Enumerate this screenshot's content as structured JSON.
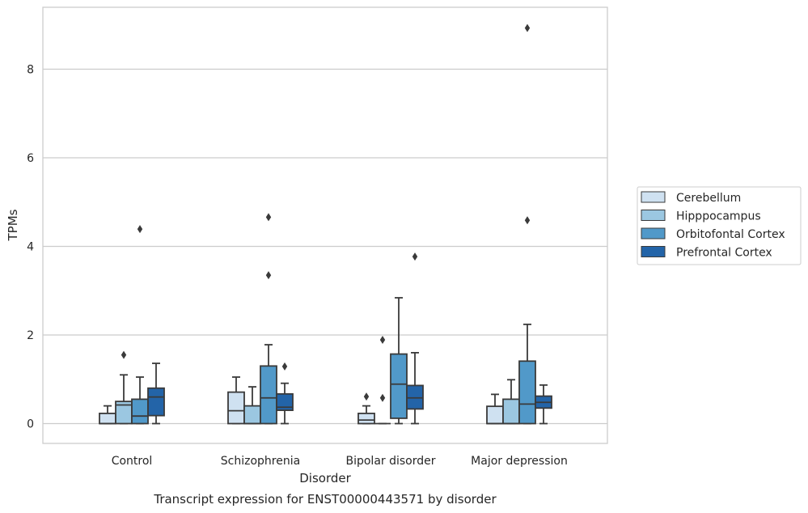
{
  "chart_data": {
    "type": "box",
    "caption": "Transcript expression for ENST00000443571 by disorder",
    "xlabel": "Disorder",
    "ylabel": "TPMs",
    "ylim": [
      -0.45,
      9.4
    ],
    "yticks": [
      0,
      2,
      4,
      6,
      8
    ],
    "grid": "horizontal",
    "legend_position": "right",
    "categories": [
      "Control",
      "Schizophrenia",
      "Bipolar disorder",
      "Major depression"
    ],
    "series": [
      {
        "name": "Cerebellum",
        "color": "#cfe1f1",
        "boxes": [
          {
            "whislo": 0,
            "q1": 0,
            "med": 0,
            "q3": 0.23,
            "whishi": 0.4,
            "fliers": []
          },
          {
            "whislo": 0,
            "q1": 0,
            "med": 0.29,
            "q3": 0.71,
            "whishi": 1.05,
            "fliers": []
          },
          {
            "whislo": 0,
            "q1": 0,
            "med": 0.08,
            "q3": 0.23,
            "whishi": 0.4,
            "fliers": [
              0.61
            ]
          },
          {
            "whislo": 0,
            "q1": 0,
            "med": 0,
            "q3": 0.39,
            "whishi": 0.66,
            "fliers": []
          }
        ]
      },
      {
        "name": "Hipppocampus",
        "color": "#9bc7e1",
        "boxes": [
          {
            "whislo": 0,
            "q1": 0,
            "med": 0.42,
            "q3": 0.5,
            "whishi": 1.1,
            "fliers": [
              1.55
            ]
          },
          {
            "whislo": 0,
            "q1": 0,
            "med": 0,
            "q3": 0.4,
            "whishi": 0.83,
            "fliers": []
          },
          {
            "whislo": 0,
            "q1": 0,
            "med": 0,
            "q3": 0,
            "whishi": 0,
            "fliers": [
              0.58,
              1.89
            ]
          },
          {
            "whislo": 0,
            "q1": 0,
            "med": 0,
            "q3": 0.55,
            "whishi": 0.99,
            "fliers": []
          }
        ]
      },
      {
        "name": "Orbitofontal Cortex",
        "color": "#5199c9",
        "boxes": [
          {
            "whislo": 0,
            "q1": 0,
            "med": 0.17,
            "q3": 0.55,
            "whishi": 1.05,
            "fliers": [
              4.39
            ]
          },
          {
            "whislo": 0,
            "q1": 0,
            "med": 0.58,
            "q3": 1.3,
            "whishi": 1.78,
            "fliers": [
              3.35,
              4.66
            ]
          },
          {
            "whislo": 0,
            "q1": 0.12,
            "med": 0.89,
            "q3": 1.57,
            "whishi": 2.84,
            "fliers": []
          },
          {
            "whislo": 0,
            "q1": 0,
            "med": 0.44,
            "q3": 1.41,
            "whishi": 2.24,
            "fliers": [
              4.59,
              8.93
            ]
          }
        ]
      },
      {
        "name": "Prefrontal Cortex",
        "color": "#2364a8",
        "boxes": [
          {
            "whislo": 0,
            "q1": 0.18,
            "med": 0.6,
            "q3": 0.8,
            "whishi": 1.36,
            "fliers": []
          },
          {
            "whislo": 0,
            "q1": 0.3,
            "med": 0.37,
            "q3": 0.67,
            "whishi": 0.91,
            "fliers": [
              1.29
            ]
          },
          {
            "whislo": 0,
            "q1": 0.33,
            "med": 0.58,
            "q3": 0.86,
            "whishi": 1.6,
            "fliers": [
              3.77
            ]
          },
          {
            "whislo": 0,
            "q1": 0.35,
            "med": 0.48,
            "q3": 0.62,
            "whishi": 0.87,
            "fliers": []
          }
        ]
      }
    ]
  }
}
